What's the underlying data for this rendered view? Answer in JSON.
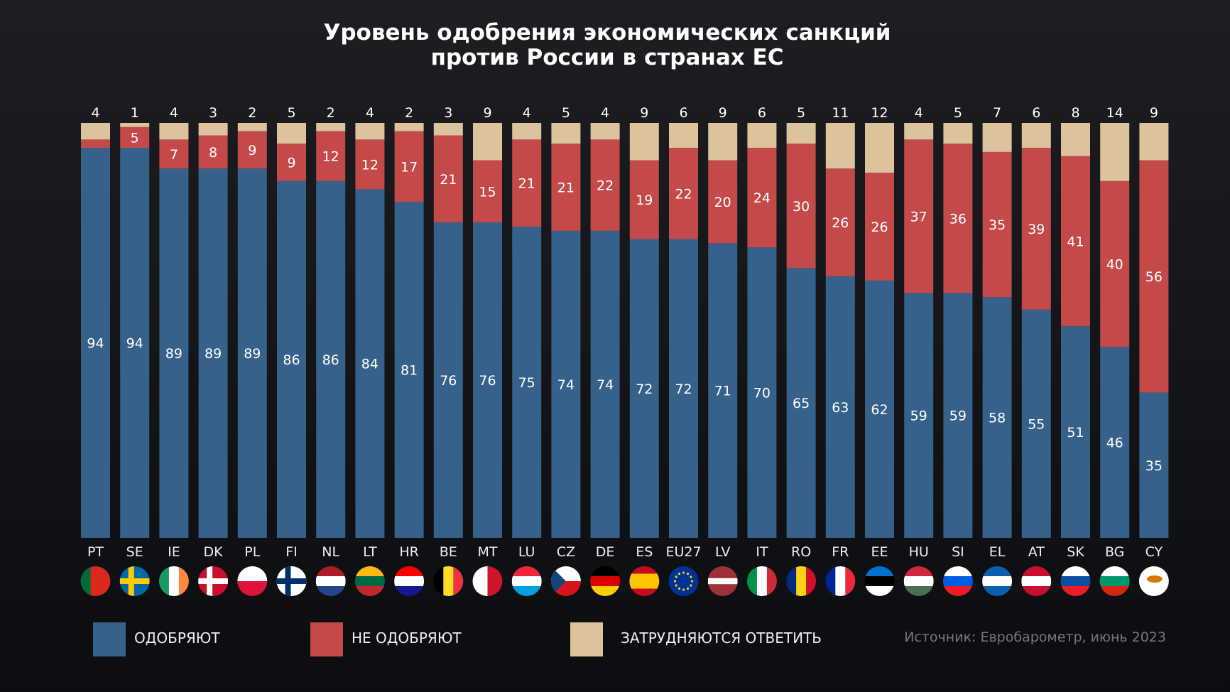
{
  "title_line1": "Уровень одобрения экономических санкций",
  "title_line2": "против России в странах ЕС",
  "legend": [
    {
      "label": "ОДОБРЯЮТ",
      "color": "#36618a"
    },
    {
      "label": "НЕ ОДОБРЯЮТ",
      "color": "#c44a4a"
    },
    {
      "label": "ЗАТРУДНЯЮТСЯ ОТВЕТИТЬ",
      "color": "#dcc39b"
    }
  ],
  "source": "Источник: Евробарометр, июнь 2023",
  "chart_data": {
    "type": "bar",
    "stacked": true,
    "categories": [
      "PT",
      "SE",
      "IE",
      "DK",
      "PL",
      "FI",
      "NL",
      "LT",
      "HR",
      "BE",
      "MT",
      "LU",
      "CZ",
      "DE",
      "ES",
      "EU27",
      "LV",
      "IT",
      "RO",
      "FR",
      "EE",
      "HU",
      "SI",
      "EL",
      "AT",
      "SK",
      "BG",
      "CY"
    ],
    "series": [
      {
        "name": "ОДОБРЯЮТ",
        "color": "#36618a",
        "values": [
          94,
          94,
          89,
          89,
          89,
          86,
          86,
          84,
          81,
          76,
          76,
          75,
          74,
          74,
          72,
          72,
          71,
          70,
          65,
          63,
          62,
          59,
          59,
          58,
          55,
          51,
          46,
          35
        ]
      },
      {
        "name": "НЕ ОДОБРЯЮТ",
        "color": "#c44a4a",
        "values": [
          2,
          5,
          7,
          8,
          9,
          9,
          12,
          12,
          17,
          21,
          15,
          21,
          21,
          22,
          19,
          22,
          20,
          24,
          30,
          26,
          26,
          37,
          36,
          35,
          39,
          41,
          40,
          56
        ],
        "unlabeled": [
          "PT"
        ]
      },
      {
        "name": "ЗАТРУДНЯЮТСЯ ОТВЕТИТЬ",
        "color": "#dcc39b",
        "values": [
          4,
          1,
          4,
          3,
          2,
          5,
          2,
          4,
          2,
          3,
          9,
          4,
          5,
          4,
          9,
          6,
          9,
          6,
          5,
          11,
          12,
          4,
          5,
          7,
          6,
          8,
          14,
          9
        ]
      }
    ],
    "ylim": [
      0,
      100
    ],
    "grid": false,
    "legend_position": "bottom"
  },
  "flags": {
    "PT": {
      "dir": "v",
      "stripes": [
        "#046a38",
        "#da291c",
        "#da291c"
      ]
    },
    "SE": {
      "cross": true,
      "bg": "#006aa7",
      "fg": "#fecc00"
    },
    "IE": {
      "dir": "v",
      "stripes": [
        "#169b62",
        "#ffffff",
        "#ff883e"
      ]
    },
    "DK": {
      "cross": true,
      "bg": "#c8102e",
      "fg": "#ffffff"
    },
    "PL": {
      "dir": "h",
      "stripes": [
        "#ffffff",
        "#dc143c"
      ]
    },
    "FI": {
      "cross": true,
      "bg": "#ffffff",
      "fg": "#002f6c"
    },
    "NL": {
      "dir": "h",
      "stripes": [
        "#ae1c28",
        "#ffffff",
        "#21468b"
      ]
    },
    "LT": {
      "dir": "h",
      "stripes": [
        "#fdb913",
        "#006a44",
        "#c1272d"
      ]
    },
    "HR": {
      "dir": "h",
      "stripes": [
        "#ff0000",
        "#ffffff",
        "#171796"
      ]
    },
    "BE": {
      "dir": "v",
      "stripes": [
        "#000000",
        "#fdda24",
        "#ef3340"
      ]
    },
    "MT": {
      "dir": "v",
      "stripes": [
        "#ffffff",
        "#cf142b"
      ]
    },
    "LU": {
      "dir": "h",
      "stripes": [
        "#ed2939",
        "#ffffff",
        "#00a1de"
      ]
    },
    "CZ": {
      "dir": "h",
      "stripes": [
        "#ffffff",
        "#d7141a"
      ],
      "tri": "#11457e"
    },
    "DE": {
      "dir": "h",
      "stripes": [
        "#000000",
        "#dd0000",
        "#ffce00"
      ]
    },
    "ES": {
      "dir": "h",
      "stripes": [
        "#c60b1e",
        "#ffc400",
        "#ffc400",
        "#c60b1e"
      ]
    },
    "EU27": {
      "dir": "h",
      "stripes": [
        "#003399"
      ],
      "stars": true
    },
    "LV": {
      "dir": "h",
      "stripes": [
        "#9e3039",
        "#9e3039",
        "#ffffff",
        "#9e3039",
        "#9e3039"
      ]
    },
    "IT": {
      "dir": "v",
      "stripes": [
        "#009246",
        "#ffffff",
        "#ce2b37"
      ]
    },
    "RO": {
      "dir": "v",
      "stripes": [
        "#002b7f",
        "#fcd116",
        "#ce1126"
      ]
    },
    "FR": {
      "dir": "v",
      "stripes": [
        "#002395",
        "#ffffff",
        "#ed2939"
      ]
    },
    "EE": {
      "dir": "h",
      "stripes": [
        "#0072ce",
        "#000000",
        "#ffffff"
      ]
    },
    "HU": {
      "dir": "h",
      "stripes": [
        "#ce2939",
        "#ffffff",
        "#477050"
      ]
    },
    "SI": {
      "dir": "h",
      "stripes": [
        "#ffffff",
        "#005ce5",
        "#ed1c24"
      ]
    },
    "EL": {
      "dir": "h",
      "stripes": [
        "#0d5eaf",
        "#ffffff",
        "#0d5eaf"
      ]
    },
    "AT": {
      "dir": "h",
      "stripes": [
        "#c8102e",
        "#ffffff",
        "#c8102e"
      ]
    },
    "SK": {
      "dir": "h",
      "stripes": [
        "#ffffff",
        "#0b4ea2",
        "#ee1c25"
      ]
    },
    "BG": {
      "dir": "h",
      "stripes": [
        "#ffffff",
        "#00966e",
        "#d62612"
      ]
    },
    "CY": {
      "dir": "h",
      "stripes": [
        "#ffffff"
      ],
      "island": "#d57800"
    }
  }
}
